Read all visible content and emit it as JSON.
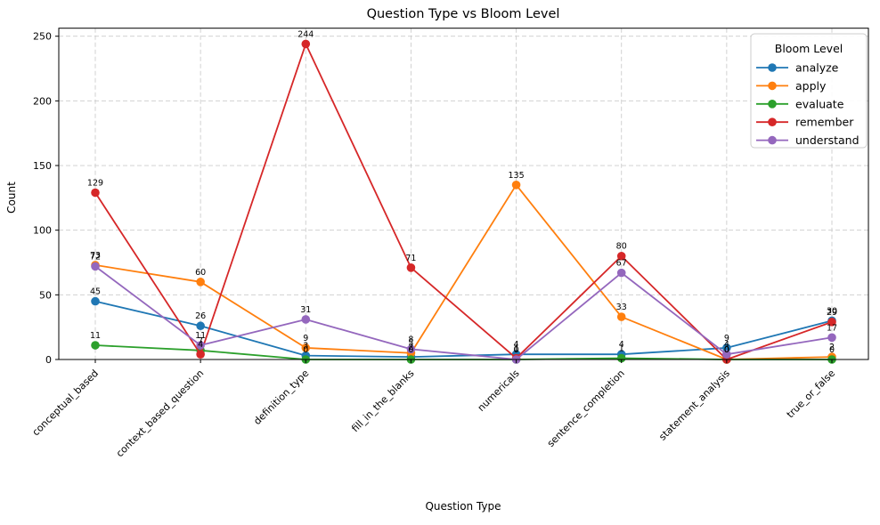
{
  "page": {
    "background": "#ffffff"
  },
  "chart_data": {
    "type": "line",
    "title": "Question Type vs Bloom Level",
    "xlabel": "Question Type",
    "ylabel": "Count",
    "legend_title": "Bloom Level",
    "legend_position": "upper right",
    "grid": true,
    "grid_style": "dashed",
    "grid_color": "#cccccc",
    "ylim": [
      0,
      250
    ],
    "yticks": [
      0,
      50,
      100,
      150,
      200,
      250
    ],
    "categories": [
      "conceptual_based",
      "context_based_question",
      "definition_type",
      "fill_in_the_blanks",
      "numericals",
      "sentence_completion",
      "statement_analysis",
      "true_or_false"
    ],
    "series": [
      {
        "name": "analyze",
        "color": "#1f77b4",
        "values": [
          45,
          26,
          3,
          2,
          4,
          4,
          9,
          30
        ]
      },
      {
        "name": "apply",
        "color": "#ff7f0e",
        "values": [
          73,
          60,
          9,
          5,
          135,
          33,
          0,
          2
        ]
      },
      {
        "name": "evaluate",
        "color": "#2ca02c",
        "values": [
          11,
          7,
          0,
          0,
          0,
          1,
          0,
          0
        ]
      },
      {
        "name": "remember",
        "color": "#d62728",
        "values": [
          129,
          4,
          244,
          71,
          1,
          80,
          0,
          29
        ]
      },
      {
        "name": "understand",
        "color": "#9467bd",
        "values": [
          72,
          11,
          31,
          8,
          0,
          67,
          4,
          17
        ]
      }
    ]
  }
}
